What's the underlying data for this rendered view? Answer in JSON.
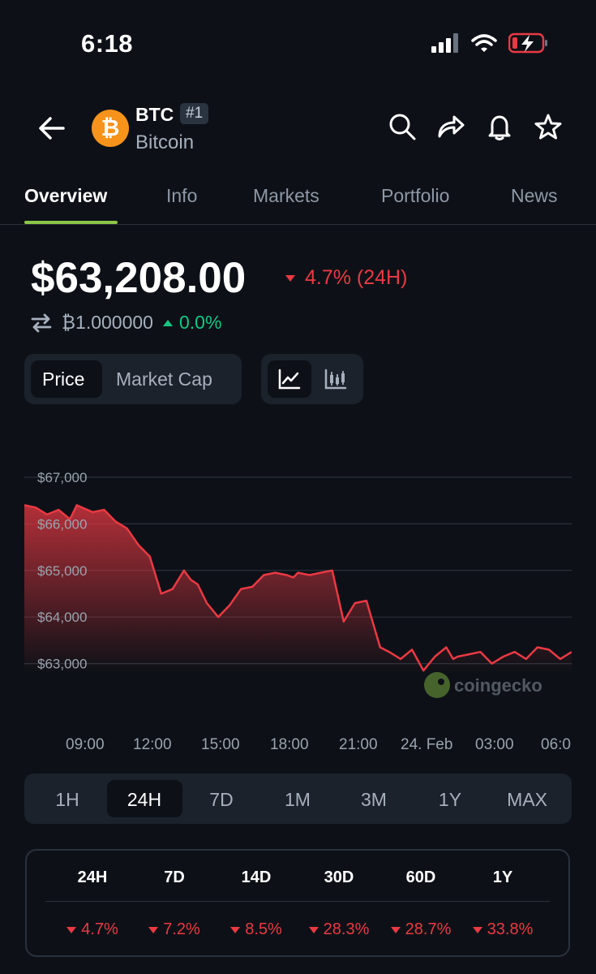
{
  "status_bar": {
    "time": "6:18",
    "icons": [
      "signal-icon",
      "wifi-icon",
      "battery-charging-icon"
    ]
  },
  "header": {
    "symbol": "BTC",
    "rank": "#1",
    "name": "Bitcoin",
    "logo_glyph": "₿",
    "actions": [
      "search-icon",
      "share-icon",
      "bell-icon",
      "star-icon"
    ]
  },
  "tabs": [
    {
      "label": "Overview",
      "active": true
    },
    {
      "label": "Info"
    },
    {
      "label": "Markets"
    },
    {
      "label": "Portfolio"
    },
    {
      "label": "News"
    }
  ],
  "price": {
    "value": "$63,208.00",
    "change_24h": "4.7% (24H)",
    "btc_value": "₿1.000000",
    "btc_change": "0.0%"
  },
  "toggle": {
    "options": [
      "Price",
      "Market Cap"
    ],
    "selected": "Price",
    "chart_modes": [
      "line-chart-icon",
      "candlestick-icon"
    ]
  },
  "chart_data": {
    "type": "area",
    "y_ticks": [
      "$67,000",
      "$66,000",
      "$65,000",
      "$64,000",
      "$63,000"
    ],
    "ylim": [
      62000,
      67400
    ],
    "x_ticks": [
      "09:00",
      "12:00",
      "15:00",
      "18:00",
      "21:00",
      "24. Feb",
      "03:00",
      "06:0"
    ],
    "x_hours": [
      0,
      24
    ],
    "series": [
      {
        "x": [
          0,
          0.5,
          1,
          1.5,
          2,
          2.3,
          3,
          3.5,
          4,
          4.5,
          5,
          5.5,
          6,
          6.5,
          7,
          7.3,
          7.6,
          8,
          8.5,
          9,
          9.5,
          10,
          10.5,
          11,
          11.5,
          11.8,
          12,
          12.5,
          13,
          13.5,
          14,
          14.5,
          15,
          15.3,
          15.6,
          16,
          16.5,
          17,
          17.5,
          18,
          18.5,
          18.8,
          19,
          19.5,
          20,
          20.5,
          21,
          21.5,
          22,
          22.5,
          23,
          23.5,
          24
        ],
        "values": [
          66400,
          66350,
          66200,
          66300,
          66100,
          66400,
          66250,
          66300,
          66050,
          65900,
          65550,
          65300,
          64500,
          64600,
          65000,
          64800,
          64700,
          64300,
          64000,
          64250,
          64600,
          64650,
          64900,
          64950,
          64900,
          64850,
          64950,
          64900,
          64950,
          65000,
          63900,
          64300,
          64350,
          63850,
          63350,
          63250,
          63100,
          63300,
          62850,
          63150,
          63350,
          63100,
          63150,
          63200,
          63250,
          63000,
          63150,
          63250,
          63100,
          63350,
          63300,
          63100,
          63250
        ]
      }
    ],
    "color": "#ea3943",
    "grid": true
  },
  "timeframes": [
    "1H",
    "24H",
    "7D",
    "1M",
    "3M",
    "1Y",
    "MAX"
  ],
  "timeframe_selected": "24H",
  "performance": {
    "headers": [
      "24H",
      "7D",
      "14D",
      "30D",
      "60D",
      "1Y"
    ],
    "values": [
      "4.7%",
      "7.2%",
      "8.5%",
      "28.3%",
      "28.7%",
      "33.8%"
    ]
  },
  "watermark": "coingecko",
  "colors": {
    "accent": "#8dc647",
    "down": "#ea3943",
    "up": "#16c784",
    "bg": "#0d1117"
  }
}
